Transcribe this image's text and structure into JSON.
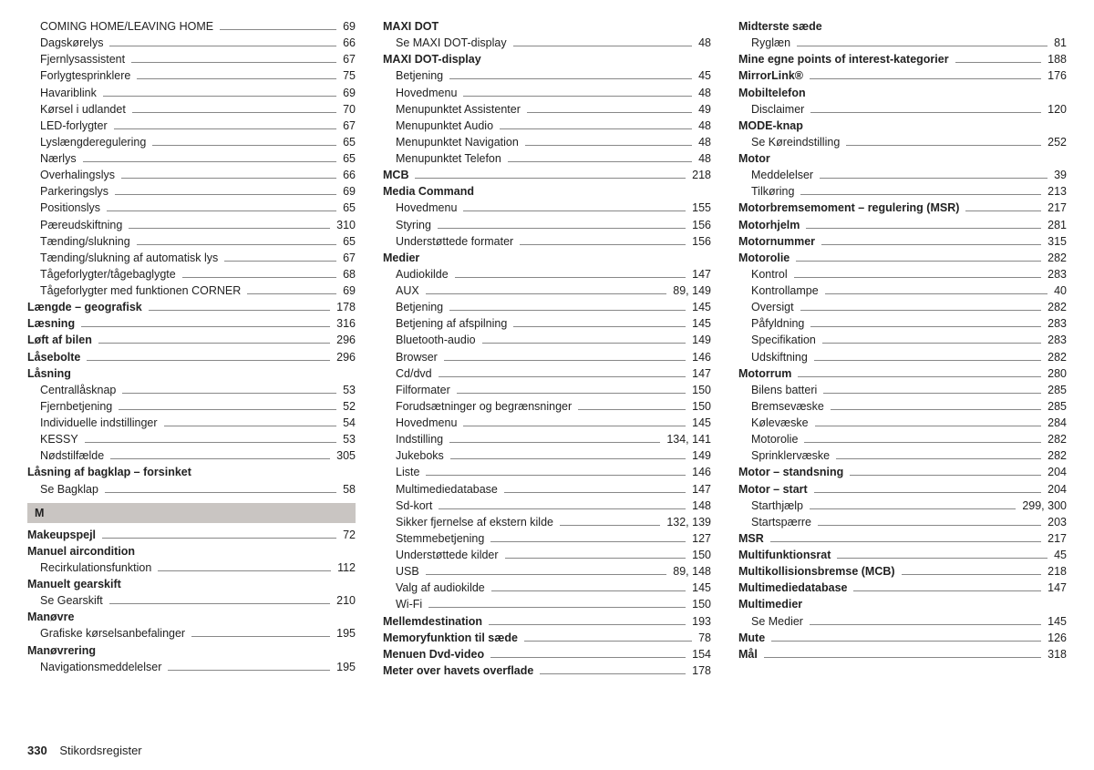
{
  "footer": {
    "page": "330",
    "title": "Stikordsregister"
  },
  "letterHeading": "M",
  "columns": [
    [
      {
        "t": "e",
        "sub": true,
        "label": "COMING HOME/LEAVING HOME",
        "page": "69"
      },
      {
        "t": "e",
        "sub": true,
        "label": "Dagskørelys",
        "page": "66"
      },
      {
        "t": "e",
        "sub": true,
        "label": "Fjernlysassistent",
        "page": "67"
      },
      {
        "t": "e",
        "sub": true,
        "label": "Forlygtesprinklere",
        "page": "75"
      },
      {
        "t": "e",
        "sub": true,
        "label": "Havariblink",
        "page": "69"
      },
      {
        "t": "e",
        "sub": true,
        "label": "Kørsel i udlandet",
        "page": "70"
      },
      {
        "t": "e",
        "sub": true,
        "label": "LED-forlygter",
        "page": "67"
      },
      {
        "t": "e",
        "sub": true,
        "label": "Lyslængderegulering",
        "page": "65"
      },
      {
        "t": "e",
        "sub": true,
        "label": "Nærlys",
        "page": "65"
      },
      {
        "t": "e",
        "sub": true,
        "label": "Overhalingslys",
        "page": "66"
      },
      {
        "t": "e",
        "sub": true,
        "label": "Parkeringslys",
        "page": "69"
      },
      {
        "t": "e",
        "sub": true,
        "label": "Positionslys",
        "page": "65"
      },
      {
        "t": "e",
        "sub": true,
        "label": "Pæreudskiftning",
        "page": "310"
      },
      {
        "t": "e",
        "sub": true,
        "label": "Tænding/slukning",
        "page": "65"
      },
      {
        "t": "e",
        "sub": true,
        "label": "Tænding/slukning af automatisk lys",
        "page": "67"
      },
      {
        "t": "e",
        "sub": true,
        "label": "Tågeforlygter/tågebaglygte",
        "page": "68"
      },
      {
        "t": "e",
        "sub": true,
        "label": "Tågeforlygter med funktionen CORNER",
        "page": "69"
      },
      {
        "t": "e",
        "bold": true,
        "label": "Længde – geografisk",
        "page": "178"
      },
      {
        "t": "e",
        "bold": true,
        "label": "Læsning",
        "page": "316"
      },
      {
        "t": "e",
        "bold": true,
        "label": "Løft af bilen",
        "page": "296"
      },
      {
        "t": "e",
        "bold": true,
        "label": "Låsebolte",
        "page": "296"
      },
      {
        "t": "h",
        "bold": true,
        "label": "Låsning"
      },
      {
        "t": "e",
        "sub": true,
        "label": "Centrallåsknap",
        "page": "53"
      },
      {
        "t": "e",
        "sub": true,
        "label": "Fjernbetjening",
        "page": "52"
      },
      {
        "t": "e",
        "sub": true,
        "label": "Individuelle indstillinger",
        "page": "54"
      },
      {
        "t": "e",
        "sub": true,
        "label": "KESSY",
        "page": "53"
      },
      {
        "t": "e",
        "sub": true,
        "label": "Nødstilfælde",
        "page": "305"
      },
      {
        "t": "h",
        "bold": true,
        "label": "Låsning af bagklap – forsinket"
      },
      {
        "t": "e",
        "sub": true,
        "label": "Se Bagklap",
        "page": "58"
      },
      {
        "t": "letter"
      },
      {
        "t": "e",
        "bold": true,
        "label": "Makeupspejl",
        "page": "72"
      },
      {
        "t": "h",
        "bold": true,
        "label": "Manuel aircondition"
      },
      {
        "t": "e",
        "sub": true,
        "label": "Recirkulationsfunktion",
        "page": "112"
      },
      {
        "t": "h",
        "bold": true,
        "label": "Manuelt gearskift"
      },
      {
        "t": "e",
        "sub": true,
        "label": "Se Gearskift",
        "page": "210"
      },
      {
        "t": "h",
        "bold": true,
        "label": "Manøvre"
      },
      {
        "t": "e",
        "sub": true,
        "label": "Grafiske kørselsanbefalinger",
        "page": "195"
      },
      {
        "t": "h",
        "bold": true,
        "label": "Manøvrering"
      },
      {
        "t": "e",
        "sub": true,
        "label": "Navigationsmeddelelser",
        "page": "195"
      }
    ],
    [
      {
        "t": "h",
        "bold": true,
        "label": "MAXI DOT"
      },
      {
        "t": "e",
        "sub": true,
        "label": "Se MAXI DOT-display",
        "page": "48"
      },
      {
        "t": "h",
        "bold": true,
        "label": "MAXI DOT-display"
      },
      {
        "t": "e",
        "sub": true,
        "label": "Betjening",
        "page": "45"
      },
      {
        "t": "e",
        "sub": true,
        "label": "Hovedmenu",
        "page": "48"
      },
      {
        "t": "e",
        "sub": true,
        "label": "Menupunktet Assistenter",
        "page": "49"
      },
      {
        "t": "e",
        "sub": true,
        "label": "Menupunktet Audio",
        "page": "48"
      },
      {
        "t": "e",
        "sub": true,
        "label": "Menupunktet Navigation",
        "page": "48"
      },
      {
        "t": "e",
        "sub": true,
        "label": "Menupunktet Telefon",
        "page": "48"
      },
      {
        "t": "e",
        "bold": true,
        "label": "MCB",
        "page": "218"
      },
      {
        "t": "h",
        "bold": true,
        "label": "Media Command"
      },
      {
        "t": "e",
        "sub": true,
        "label": "Hovedmenu",
        "page": "155"
      },
      {
        "t": "e",
        "sub": true,
        "label": "Styring",
        "page": "156"
      },
      {
        "t": "e",
        "sub": true,
        "label": "Understøttede formater",
        "page": "156"
      },
      {
        "t": "h",
        "bold": true,
        "label": "Medier"
      },
      {
        "t": "e",
        "sub": true,
        "label": "Audiokilde",
        "page": "147"
      },
      {
        "t": "e",
        "sub": true,
        "label": "AUX",
        "page": "89, 149"
      },
      {
        "t": "e",
        "sub": true,
        "label": "Betjening",
        "page": "145"
      },
      {
        "t": "e",
        "sub": true,
        "label": "Betjening af afspilning",
        "page": "145"
      },
      {
        "t": "e",
        "sub": true,
        "label": "Bluetooth-audio",
        "page": "149"
      },
      {
        "t": "e",
        "sub": true,
        "label": "Browser",
        "page": "146"
      },
      {
        "t": "e",
        "sub": true,
        "label": "Cd/dvd",
        "page": "147"
      },
      {
        "t": "e",
        "sub": true,
        "label": "Filformater",
        "page": "150"
      },
      {
        "t": "e",
        "sub": true,
        "label": "Forudsætninger og begrænsninger",
        "page": "150"
      },
      {
        "t": "e",
        "sub": true,
        "label": "Hovedmenu",
        "page": "145"
      },
      {
        "t": "e",
        "sub": true,
        "label": "Indstilling",
        "page": "134, 141"
      },
      {
        "t": "e",
        "sub": true,
        "label": "Jukeboks",
        "page": "149"
      },
      {
        "t": "e",
        "sub": true,
        "label": "Liste",
        "page": "146"
      },
      {
        "t": "e",
        "sub": true,
        "label": "Multimediedatabase",
        "page": "147"
      },
      {
        "t": "e",
        "sub": true,
        "label": "Sd-kort",
        "page": "148"
      },
      {
        "t": "e",
        "sub": true,
        "label": "Sikker fjernelse af ekstern kilde",
        "page": "132, 139"
      },
      {
        "t": "e",
        "sub": true,
        "label": "Stemmebetjening",
        "page": "127"
      },
      {
        "t": "e",
        "sub": true,
        "label": "Understøttede kilder",
        "page": "150"
      },
      {
        "t": "e",
        "sub": true,
        "label": "USB",
        "page": "89, 148"
      },
      {
        "t": "e",
        "sub": true,
        "label": "Valg af audiokilde",
        "page": "145"
      },
      {
        "t": "e",
        "sub": true,
        "label": "Wi-Fi",
        "page": "150"
      },
      {
        "t": "e",
        "bold": true,
        "label": "Mellemdestination",
        "page": "193"
      },
      {
        "t": "e",
        "bold": true,
        "label": "Memoryfunktion til sæde",
        "page": "78"
      },
      {
        "t": "e",
        "bold": true,
        "label": "Menuen Dvd-video",
        "page": "154"
      },
      {
        "t": "e",
        "bold": true,
        "label": "Meter over havets overflade",
        "page": "178"
      }
    ],
    [
      {
        "t": "h",
        "bold": true,
        "label": "Midterste sæde"
      },
      {
        "t": "e",
        "sub": true,
        "label": "Ryglæn",
        "page": "81"
      },
      {
        "t": "e",
        "bold": true,
        "label": "Mine egne points of interest-kategorier",
        "page": "188"
      },
      {
        "t": "e",
        "bold": true,
        "label": "MirrorLink®",
        "page": "176"
      },
      {
        "t": "h",
        "bold": true,
        "label": "Mobiltelefon"
      },
      {
        "t": "e",
        "sub": true,
        "label": "Disclaimer",
        "page": "120"
      },
      {
        "t": "h",
        "bold": true,
        "label": "MODE-knap"
      },
      {
        "t": "e",
        "sub": true,
        "label": "Se Køreindstilling",
        "page": "252"
      },
      {
        "t": "h",
        "bold": true,
        "label": "Motor"
      },
      {
        "t": "e",
        "sub": true,
        "label": "Meddelelser",
        "page": "39"
      },
      {
        "t": "e",
        "sub": true,
        "label": "Tilkøring",
        "page": "213"
      },
      {
        "t": "e",
        "bold": true,
        "label": "Motorbremsemoment – regulering (MSR)",
        "page": "217"
      },
      {
        "t": "e",
        "bold": true,
        "label": "Motorhjelm",
        "page": "281"
      },
      {
        "t": "e",
        "bold": true,
        "label": "Motornummer",
        "page": "315"
      },
      {
        "t": "e",
        "bold": true,
        "label": "Motorolie",
        "page": "282"
      },
      {
        "t": "e",
        "sub": true,
        "label": "Kontrol",
        "page": "283"
      },
      {
        "t": "e",
        "sub": true,
        "label": "Kontrollampe",
        "page": "40"
      },
      {
        "t": "e",
        "sub": true,
        "label": "Oversigt",
        "page": "282"
      },
      {
        "t": "e",
        "sub": true,
        "label": "Påfyldning",
        "page": "283"
      },
      {
        "t": "e",
        "sub": true,
        "label": "Specifikation",
        "page": "283"
      },
      {
        "t": "e",
        "sub": true,
        "label": "Udskiftning",
        "page": "282"
      },
      {
        "t": "e",
        "bold": true,
        "label": "Motorrum",
        "page": "280"
      },
      {
        "t": "e",
        "sub": true,
        "label": "Bilens batteri",
        "page": "285"
      },
      {
        "t": "e",
        "sub": true,
        "label": "Bremsevæske",
        "page": "285"
      },
      {
        "t": "e",
        "sub": true,
        "label": "Kølevæske",
        "page": "284"
      },
      {
        "t": "e",
        "sub": true,
        "label": "Motorolie",
        "page": "282"
      },
      {
        "t": "e",
        "sub": true,
        "label": "Sprinklervæske",
        "page": "282"
      },
      {
        "t": "e",
        "bold": true,
        "label": "Motor – standsning",
        "page": "204"
      },
      {
        "t": "e",
        "bold": true,
        "label": "Motor – start",
        "page": "204"
      },
      {
        "t": "e",
        "sub": true,
        "label": "Starthjælp",
        "page": "299, 300"
      },
      {
        "t": "e",
        "sub": true,
        "label": "Startspærre",
        "page": "203"
      },
      {
        "t": "e",
        "bold": true,
        "label": "MSR",
        "page": "217"
      },
      {
        "t": "e",
        "bold": true,
        "label": "Multifunktionsrat",
        "page": "45"
      },
      {
        "t": "e",
        "bold": true,
        "label": "Multikollisionsbremse (MCB)",
        "page": "218"
      },
      {
        "t": "e",
        "bold": true,
        "label": "Multimediedatabase",
        "page": "147"
      },
      {
        "t": "h",
        "bold": true,
        "label": "Multimedier"
      },
      {
        "t": "e",
        "sub": true,
        "label": "Se Medier",
        "page": "145"
      },
      {
        "t": "e",
        "bold": true,
        "label": "Mute",
        "page": "126"
      },
      {
        "t": "e",
        "bold": true,
        "label": "Mål",
        "page": "318"
      }
    ]
  ]
}
